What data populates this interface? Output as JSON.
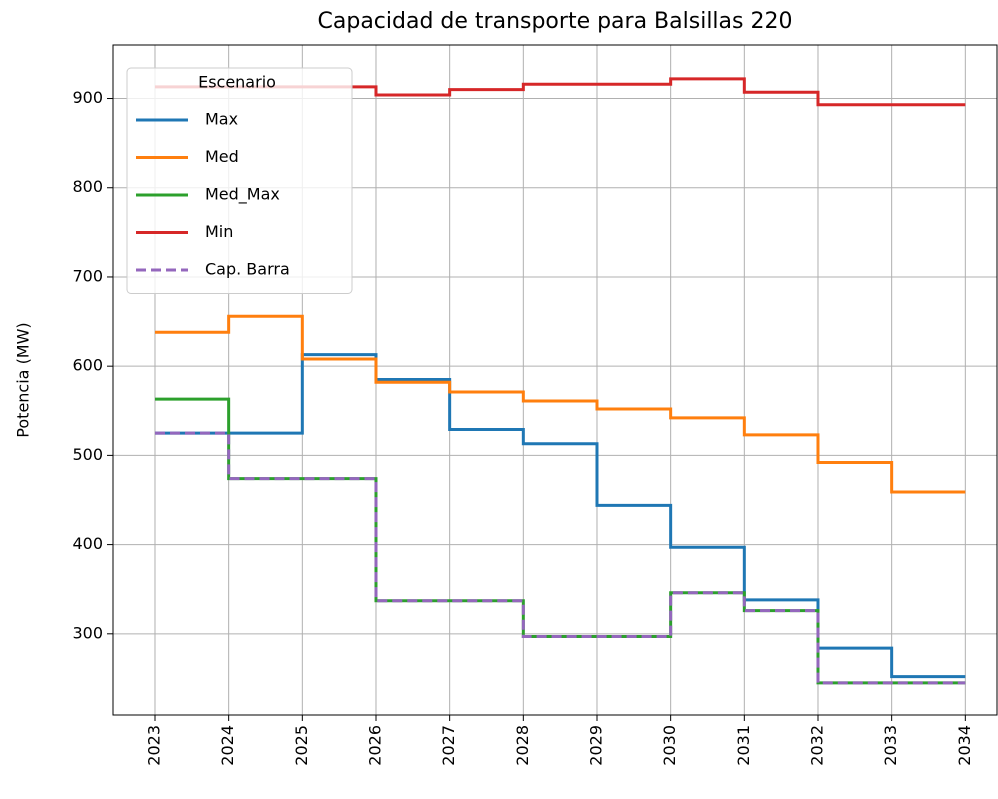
{
  "chart_data": {
    "type": "step",
    "title": "Capacidad de transporte para Balsillas 220",
    "y_label": "Potencia (MW)",
    "x": [
      2023,
      2024,
      2025,
      2026,
      2027,
      2028,
      2029,
      2030,
      2031,
      2032,
      2033,
      2034
    ],
    "series": [
      {
        "name": "Max",
        "color": "#1f77b4",
        "dash": false,
        "values": [
          525,
          525,
          613,
          585,
          529,
          513,
          444,
          397,
          338,
          284,
          252,
          252
        ]
      },
      {
        "name": "Med",
        "color": "#ff7f0e",
        "dash": false,
        "values": [
          638,
          656,
          608,
          582,
          571,
          561,
          552,
          542,
          523,
          492,
          459,
          459
        ]
      },
      {
        "name": "Med_Max",
        "color": "#2ca02c",
        "dash": false,
        "values": [
          563,
          474,
          474,
          337,
          337,
          297,
          297,
          346,
          326,
          245,
          245,
          245
        ]
      },
      {
        "name": "Min",
        "color": "#d62728",
        "dash": false,
        "values": [
          913,
          913,
          913,
          904,
          910,
          916,
          916,
          922,
          907,
          893,
          893,
          893
        ]
      },
      {
        "name": "Cap. Barra",
        "color": "#9467bd",
        "dash": true,
        "values": [
          525,
          474,
          474,
          337,
          337,
          297,
          297,
          346,
          326,
          245,
          245,
          245
        ]
      }
    ],
    "legend_title": "Escenario",
    "legend": "upper left",
    "xlim": [
      2022.43,
      2034.43
    ],
    "xticks": [
      2023,
      2024,
      2025,
      2026,
      2027,
      2028,
      2029,
      2030,
      2031,
      2032,
      2033,
      2034
    ],
    "ylim": [
      209,
      960
    ],
    "yticks": [
      300,
      400,
      500,
      600,
      700,
      800,
      900
    ],
    "grid": true
  }
}
